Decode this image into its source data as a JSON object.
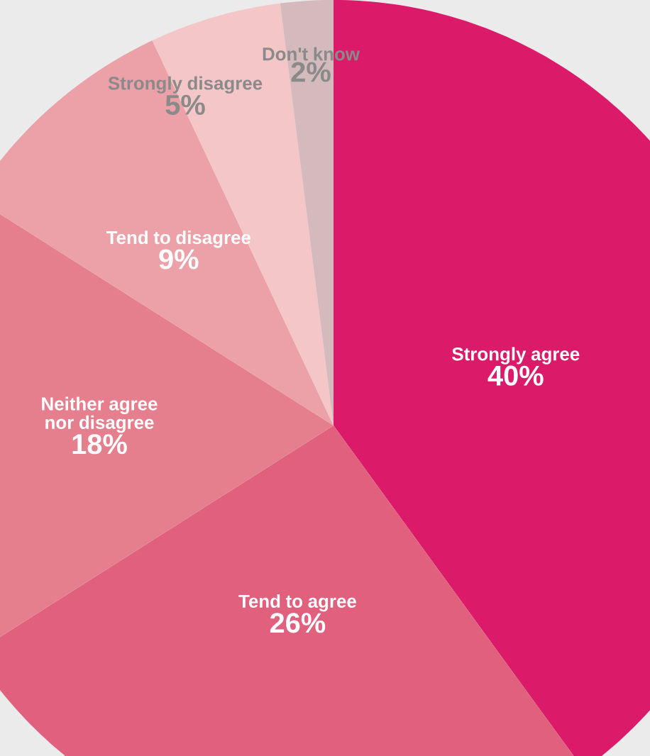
{
  "chart_data": {
    "type": "pie",
    "categories": [
      "Strongly agree",
      "Tend to agree",
      "Neither agree nor disagree",
      "Tend to disagree",
      "Strongly disagree",
      "Don't know"
    ],
    "values": [
      40,
      26,
      18,
      9,
      5,
      2
    ],
    "value_labels": [
      "40%",
      "26%",
      "18%",
      "9%",
      "5%",
      "2%"
    ],
    "colors": [
      "#dc1a6a",
      "#e0607e",
      "#e57f8e",
      "#eca0a8",
      "#f4c6c8",
      "#d4b9bd"
    ]
  }
}
